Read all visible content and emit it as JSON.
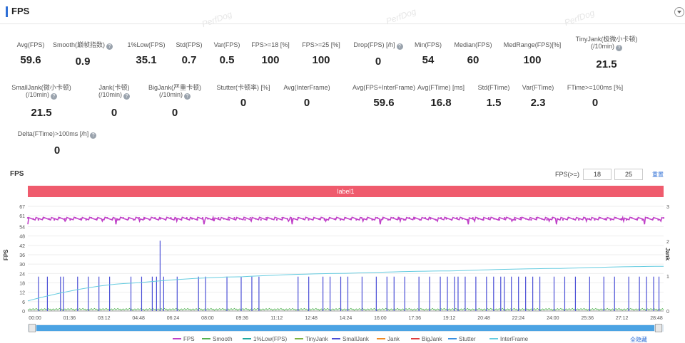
{
  "header": {
    "title": "FPS",
    "watermark": "PerfDog"
  },
  "metrics": [
    {
      "label": "Avg(FPS)",
      "value": "59.6",
      "help": false
    },
    {
      "label": "Smooth(巅帧指数)",
      "value": "0.9",
      "help": true
    },
    {
      "label": "1%Low(FPS)",
      "value": "35.1",
      "help": false
    },
    {
      "label": "Std(FPS)",
      "value": "0.7",
      "help": false
    },
    {
      "label": "Var(FPS)",
      "value": "0.5",
      "help": false
    },
    {
      "label": "FPS>=18 [%]",
      "value": "100",
      "help": false
    },
    {
      "label": "FPS>=25 [%]",
      "value": "100",
      "help": false
    },
    {
      "label": "Drop(FPS) [/h]",
      "value": "0",
      "help": true
    },
    {
      "label": "Min(FPS)",
      "value": "54",
      "help": false
    },
    {
      "label": "Median(FPS)",
      "value": "60",
      "help": false
    },
    {
      "label": "MedRange(FPS)[%]",
      "value": "100",
      "help": false
    },
    {
      "label": "TinyJank(极微小卡顿)",
      "label2": "(/10min)",
      "value": "21.5",
      "help": true
    },
    {
      "label": "SmallJank(微小卡顿)",
      "label2": "(/10min)",
      "value": "21.5",
      "help": true
    },
    {
      "label": "Jank(卡顿)",
      "label2": "(/10min)",
      "value": "0",
      "help": true
    },
    {
      "label": "BigJank(严重卡顿)",
      "label2": "(/10min)",
      "value": "0",
      "help": true
    },
    {
      "label": "Stutter(卡顿率) [%]",
      "value": "0",
      "help": false
    },
    {
      "label": "Avg(InterFrame)",
      "value": "0",
      "help": false
    },
    {
      "label": "Avg(FPS+InterFrame)",
      "value": "59.6",
      "help": false
    },
    {
      "label": "Avg(FTime) [ms]",
      "value": "16.8",
      "help": false
    },
    {
      "label": "Std(FTime)",
      "value": "1.5",
      "help": false
    },
    {
      "label": "Var(FTime)",
      "value": "2.3",
      "help": false
    },
    {
      "label": "FTime>=100ms [%]",
      "value": "0",
      "help": false
    },
    {
      "label": "Delta(FTime)>100ms [/h]",
      "value": "0",
      "help": true
    }
  ],
  "chart_controls": {
    "title": "FPS",
    "fps_ge_label": "FPS(>=)",
    "fps_threshold_1": "18",
    "fps_threshold_2": "25",
    "apply_label": "重置",
    "label_bar": "label1",
    "hide_all": "全隐藏"
  },
  "chart_data": {
    "type": "line",
    "ylabel": "FPS",
    "ylabel_right": "Jank",
    "ylim": [
      0,
      67
    ],
    "yticks": [
      0,
      6,
      12,
      18,
      24,
      30,
      36,
      42,
      48,
      54,
      61,
      67
    ],
    "ylim_right": [
      0,
      3
    ],
    "yticks_right": [
      0,
      1,
      2,
      3
    ],
    "x_ticks": [
      "00:00",
      "01:36",
      "03:12",
      "04:48",
      "06:24",
      "08:00",
      "09:36",
      "11:12",
      "12:48",
      "14:24",
      "16:00",
      "17:36",
      "19:12",
      "20:48",
      "22:24",
      "24:00",
      "25:36",
      "27:12",
      "28:48"
    ],
    "x_range_seconds": [
      0,
      1788
    ],
    "series": [
      {
        "name": "FPS",
        "color": "#c041c8",
        "approx_level": 59.6,
        "range": [
          54,
          61
        ]
      },
      {
        "name": "Smooth",
        "color": "#52b252",
        "approx_level": 0.9
      },
      {
        "name": "1%Low(FPS)",
        "color": "#1ea8a0"
      },
      {
        "name": "TinyJank",
        "color": "#7cb342"
      },
      {
        "name": "SmallJank",
        "color": "#4a4fd6",
        "spikes_sec": [
          30,
          55,
          92,
          100,
          140,
          170,
          200,
          230,
          290,
          320,
          350,
          362,
          372,
          382,
          420,
          480,
          500,
          560,
          600,
          630,
          650,
          760,
          790,
          830,
          850,
          880,
          900,
          940,
          980,
          1010,
          1030,
          1060,
          1100,
          1130,
          1160,
          1180,
          1200,
          1210,
          1230,
          1260,
          1290,
          1310,
          1330,
          1340,
          1360,
          1380,
          1400,
          1420,
          1440,
          1480,
          1510,
          1540,
          1580,
          1620,
          1650,
          1690,
          1720,
          1740,
          1760,
          1775
        ],
        "spike_fps": 22,
        "tall_spike_sec": 372,
        "tall_spike_fps": 45
      },
      {
        "name": "Jank",
        "color": "#f08a24"
      },
      {
        "name": "BigJank",
        "color": "#e03e3e"
      },
      {
        "name": "Stutter",
        "color": "#3b8fe0"
      },
      {
        "name": "InterFrame",
        "color": "#66cce0",
        "curve_right_axis": [
          [
            0,
            0.29
          ],
          [
            300,
            0.8
          ],
          [
            600,
            0.98
          ],
          [
            900,
            1.08
          ],
          [
            1200,
            1.15
          ],
          [
            1500,
            1.22
          ],
          [
            1788,
            1.28
          ]
        ]
      }
    ]
  }
}
